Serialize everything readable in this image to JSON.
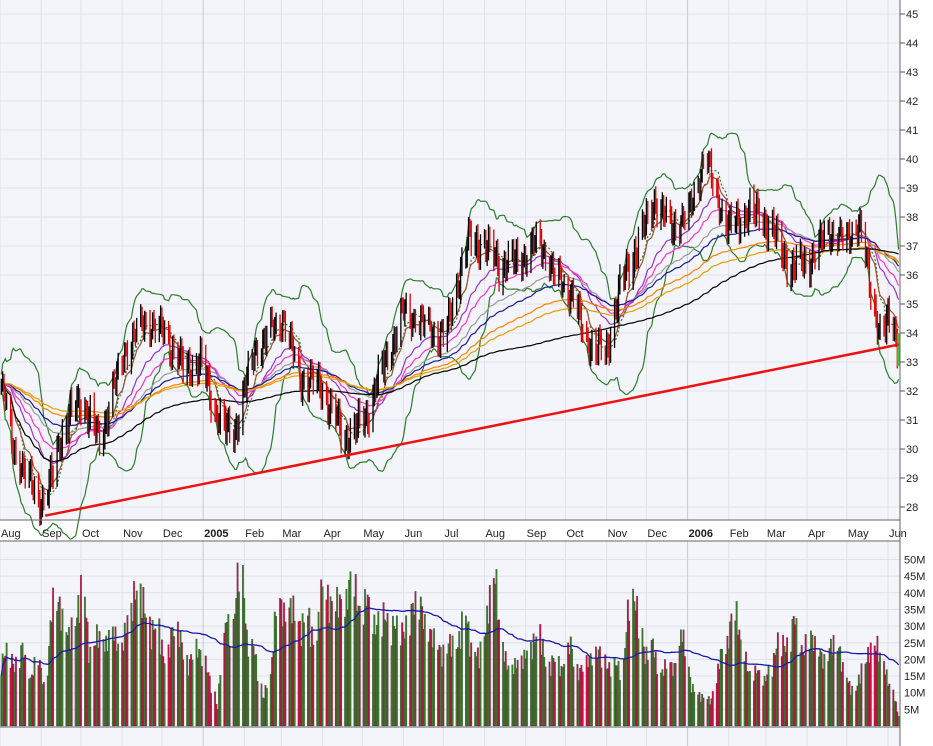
{
  "chart_data": [
    {
      "type": "line",
      "panel": "price",
      "style": "daily OHLC bars with moving averages and Bollinger Bands",
      "x_axis_labels": [
        "Aug",
        "Sep",
        "Oct",
        "Nov",
        "Dec",
        "2005",
        "Feb",
        "Mar",
        "Apr",
        "May",
        "Jun",
        "Jul",
        "Aug",
        "Sep",
        "Oct",
        "Nov",
        "Dec",
        "2006",
        "Feb",
        "Mar",
        "Apr",
        "May",
        "Jun"
      ],
      "year_labels": [
        "2005",
        "2006"
      ],
      "y_ticks": [
        28,
        29,
        30,
        31,
        32,
        33,
        34,
        35,
        36,
        37,
        38,
        39,
        40,
        41,
        42,
        43,
        44,
        45
      ],
      "ylim": [
        27.6,
        45.5
      ],
      "grid": true,
      "axis_position": "right",
      "close_points": [
        [
          "2004-08-01",
          32.5
        ],
        [
          "2004-08-12",
          30.0
        ],
        [
          "2004-08-18",
          29.3
        ],
        [
          "2004-09-04",
          28.0
        ],
        [
          "2004-09-15",
          30.3
        ],
        [
          "2004-09-30",
          31.7
        ],
        [
          "2004-10-15",
          30.3
        ],
        [
          "2004-11-03",
          33.4
        ],
        [
          "2004-11-18",
          34.5
        ],
        [
          "2004-12-03",
          34.0
        ],
        [
          "2004-12-18",
          32.7
        ],
        [
          "2004-12-30",
          33.0
        ],
        [
          "2005-01-10",
          31.3
        ],
        [
          "2005-01-23",
          30.3
        ],
        [
          "2005-02-09",
          33.4
        ],
        [
          "2005-03-02",
          34.6
        ],
        [
          "2005-03-15",
          32.5
        ],
        [
          "2005-03-30",
          32.2
        ],
        [
          "2005-04-18",
          30.3
        ],
        [
          "2005-05-03",
          31.0
        ],
        [
          "2005-05-18",
          33.0
        ],
        [
          "2005-06-02",
          34.8
        ],
        [
          "2005-06-21",
          34.2
        ],
        [
          "2005-07-02",
          33.8
        ],
        [
          "2005-07-14",
          36.2
        ],
        [
          "2005-07-21",
          37.2
        ],
        [
          "2005-08-01",
          37.0
        ],
        [
          "2005-08-13",
          36.3
        ],
        [
          "2005-08-28",
          36.5
        ],
        [
          "2005-09-12",
          37.2
        ],
        [
          "2005-09-23",
          36.0
        ],
        [
          "2005-10-05",
          35.5
        ],
        [
          "2005-10-16",
          33.8
        ],
        [
          "2005-10-31",
          33.2
        ],
        [
          "2005-11-11",
          35.5
        ],
        [
          "2005-11-26",
          37.2
        ],
        [
          "2005-12-08",
          38.6
        ],
        [
          "2005-12-19",
          37.6
        ],
        [
          "2006-01-03",
          38.2
        ],
        [
          "2006-01-14",
          40.3
        ],
        [
          "2006-01-22",
          38.8
        ],
        [
          "2006-02-02",
          37.6
        ],
        [
          "2006-02-17",
          38.2
        ],
        [
          "2006-03-04",
          37.7
        ],
        [
          "2006-03-19",
          36.2
        ],
        [
          "2006-04-03",
          36.5
        ],
        [
          "2006-04-18",
          37.6
        ],
        [
          "2006-04-30",
          37.2
        ],
        [
          "2006-05-10",
          37.9
        ],
        [
          "2006-05-19",
          35.5
        ],
        [
          "2006-05-26",
          34.0
        ],
        [
          "2006-06-03",
          34.4
        ],
        [
          "2006-06-09",
          33.6
        ]
      ],
      "trendline": {
        "color": "#ee1111",
        "from": [
          "2004-09-04",
          27.7
        ],
        "to": [
          "2006-06-09",
          33.6
        ]
      },
      "bar_colors": {
        "up": "#000000",
        "down": "#dd0000",
        "last": "#33cc33"
      },
      "indicator_colors": [
        "#2e7d2e",
        "#a0522d",
        "#9933cc",
        "#ff33cc",
        "#999999",
        "#1a1a99",
        "#ff8000",
        "#e0a000",
        "#000000"
      ]
    },
    {
      "type": "bar",
      "panel": "volume",
      "y_ticks": [
        "5M",
        "10M",
        "15M",
        "20M",
        "25M",
        "30M",
        "35M",
        "40M",
        "45M",
        "50M"
      ],
      "ylim_millions": [
        0,
        55
      ],
      "grid": true,
      "bar_colors": {
        "up": "#3d7a2e",
        "down": "#cc1144"
      },
      "moving_average_color": "#1a1aaa",
      "volume_millions_sampled": [
        20,
        24,
        18,
        26,
        14,
        22,
        12,
        40,
        38,
        28,
        33,
        45,
        22,
        30,
        25,
        31,
        24,
        33,
        43,
        41,
        30,
        32,
        20,
        31,
        29,
        18,
        25,
        22,
        15,
        5,
        34,
        31,
        53,
        27,
        24,
        8,
        16,
        40,
        35,
        39,
        30,
        36,
        25,
        45,
        38,
        40,
        38,
        48,
        35,
        42,
        30,
        36,
        32,
        32,
        29,
        38,
        39,
        30,
        28,
        22,
        27,
        25,
        36,
        24,
        22,
        35,
        50,
        24,
        18,
        20,
        22,
        26,
        30,
        18,
        22,
        17,
        28,
        16,
        20,
        22,
        24,
        18,
        20,
        18,
        41,
        38,
        21,
        27,
        16,
        20,
        18,
        32,
        14,
        10,
        9,
        8,
        22,
        26,
        38,
        25,
        16,
        18,
        14,
        20,
        28,
        24,
        36,
        22,
        29,
        25,
        20,
        27,
        24,
        14,
        11,
        18,
        24,
        26,
        18,
        11,
        3
      ]
    }
  ]
}
